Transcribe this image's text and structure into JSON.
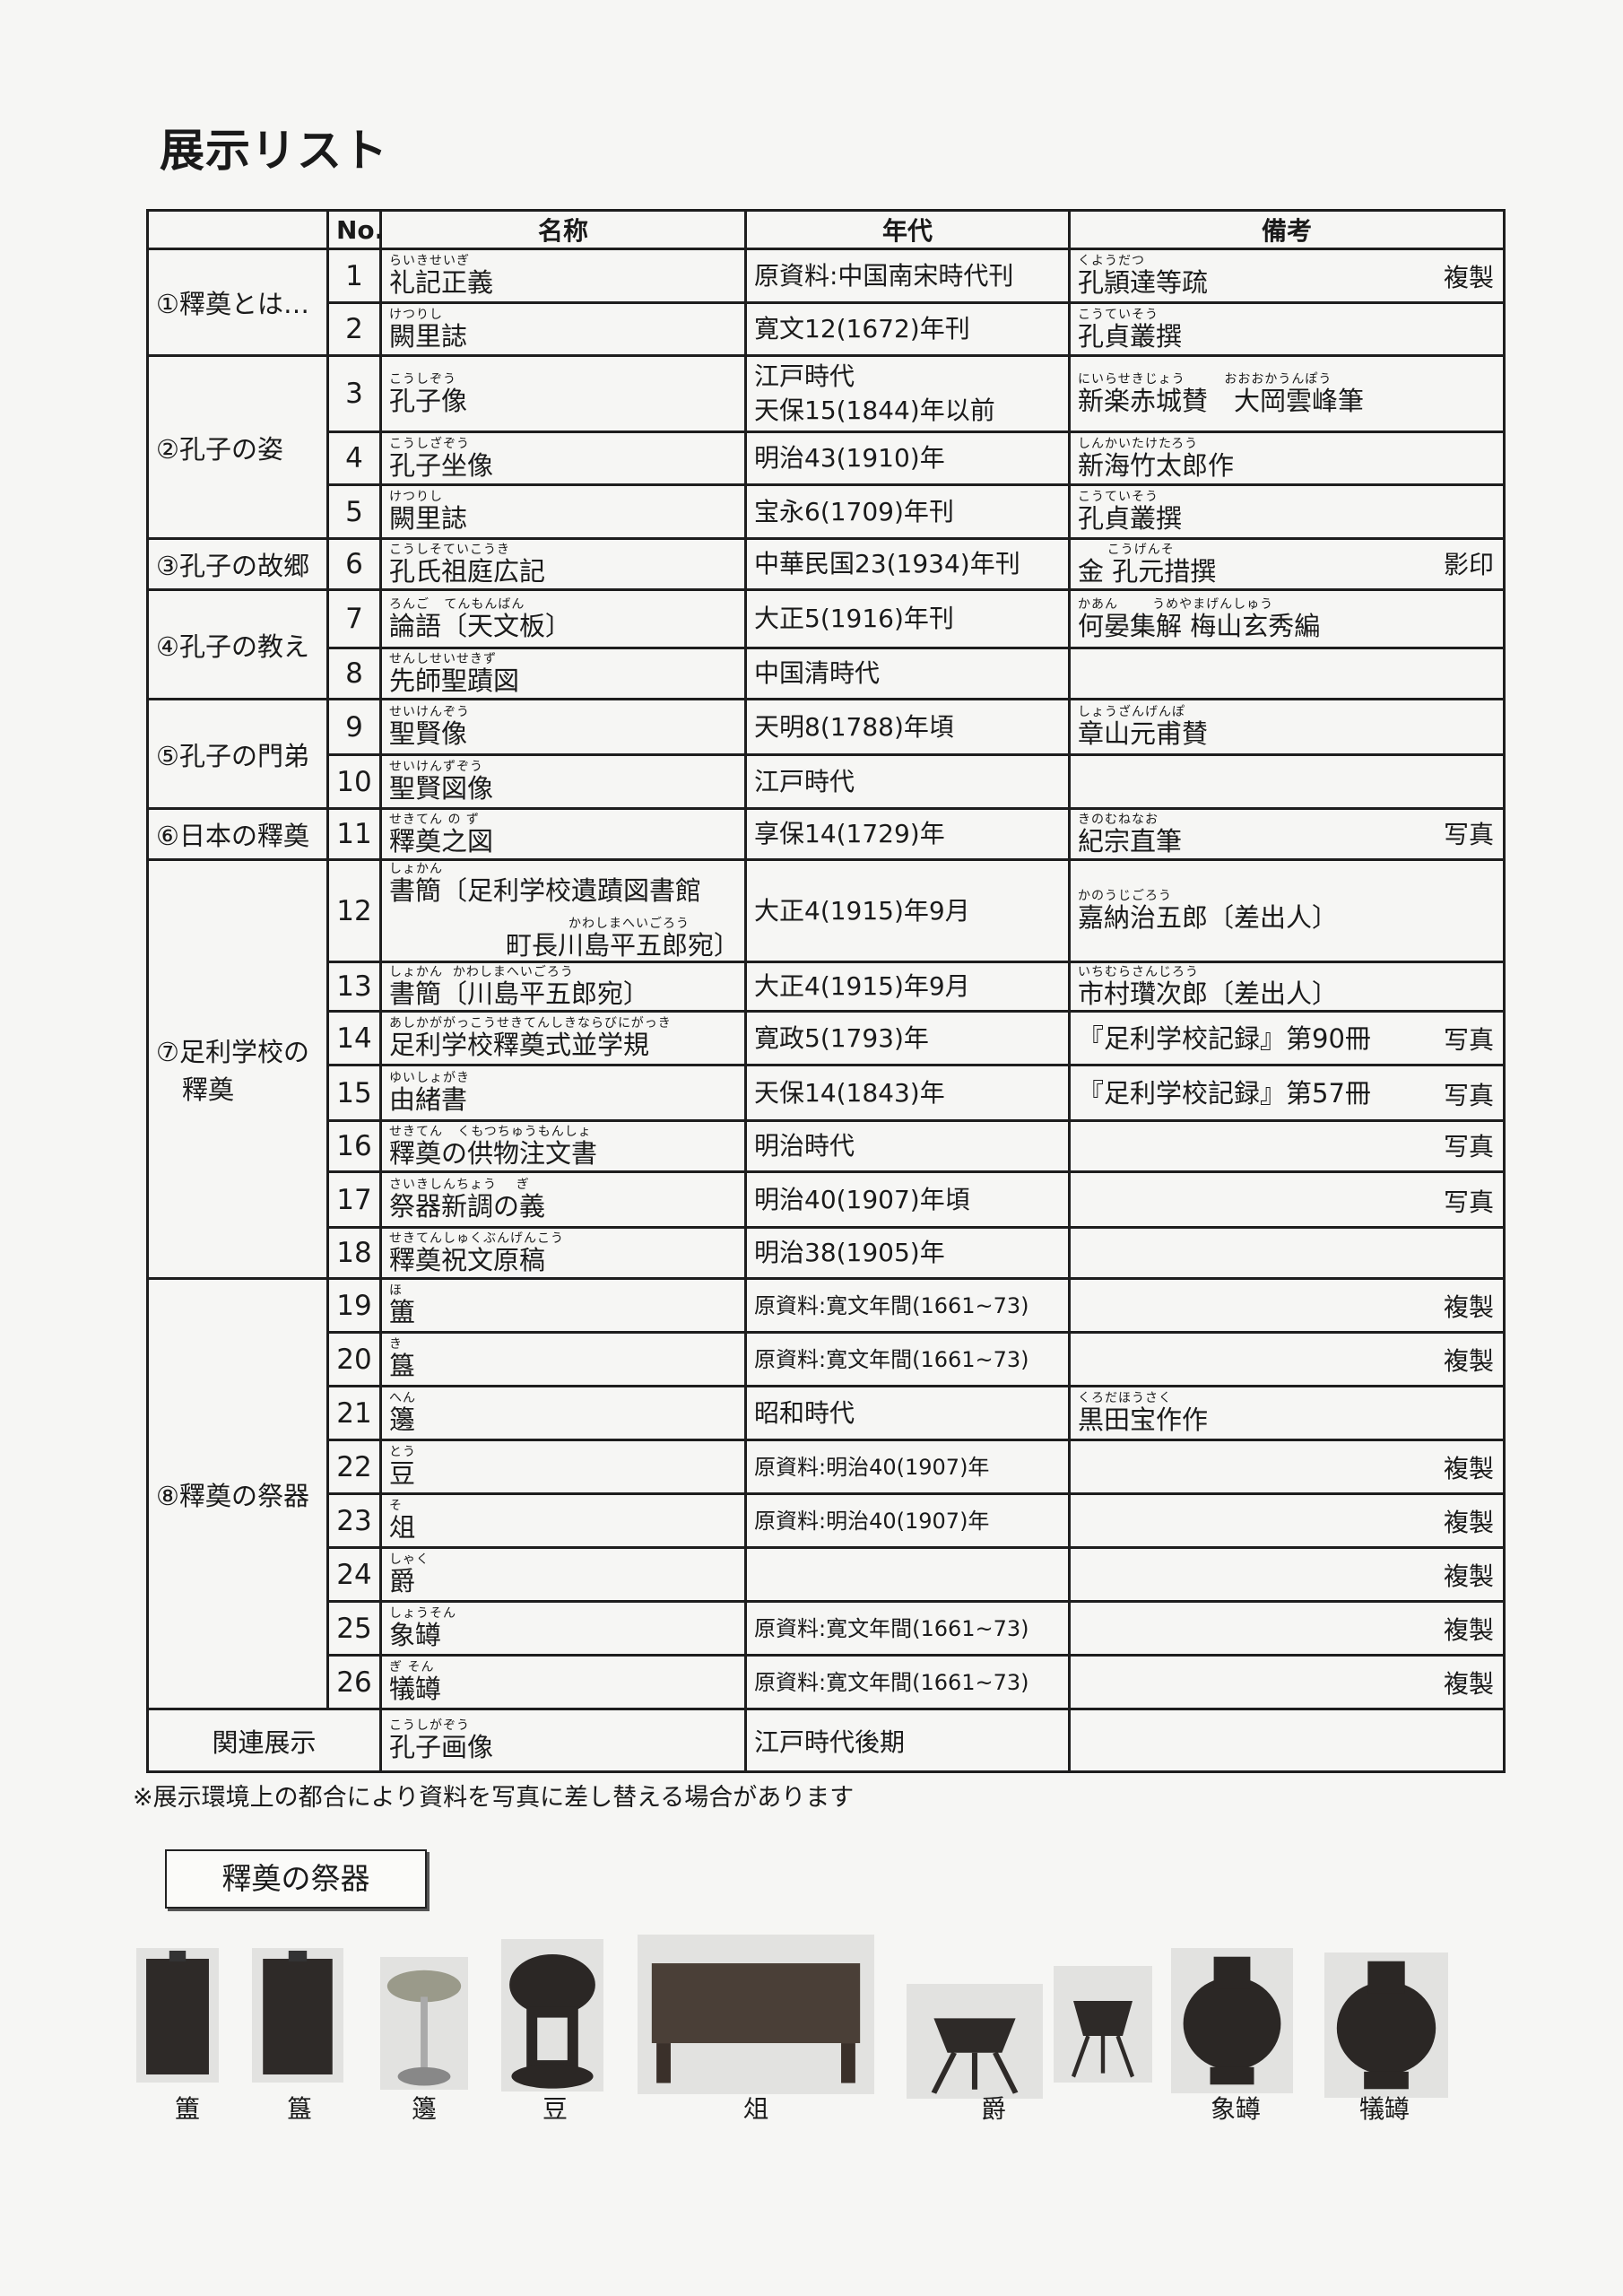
{
  "title": "展示リスト",
  "headers": {
    "section": "",
    "no": "No.",
    "name": "名称",
    "year": "年代",
    "notes": "備考"
  },
  "sections": [
    {
      "label": "①釋奠とは…",
      "items": [
        {
          "no": "1",
          "name_reading": "らいきせいぎ",
          "name": "礼記正義",
          "year": "原資料:中国南宋時代刊",
          "notes_reading": "くようだつ",
          "notes": "孔頴達等疏",
          "tag": "複製"
        },
        {
          "no": "2",
          "name_reading": "けつりし",
          "name": "闕里誌",
          "year": "寛文12(1672)年刊",
          "notes_reading": "こうていそう",
          "notes": "孔貞叢撰",
          "tag": ""
        }
      ]
    },
    {
      "label": "②孔子の姿",
      "items": [
        {
          "no": "3",
          "name_reading": "こうしぞう",
          "name": "孔子像",
          "year": "江戸時代\n天保15(1844)年以前",
          "notes_reading": "にいらせきじょう        おおおかうんぽう",
          "notes": "新楽赤城賛　大岡雲峰筆",
          "tag": ""
        },
        {
          "no": "4",
          "name_reading": "こうしざぞう",
          "name": "孔子坐像",
          "year": "明治43(1910)年",
          "notes_reading": "しんかいたけたろう",
          "notes": "新海竹太郎作",
          "tag": ""
        },
        {
          "no": "5",
          "name_reading": "けつりし",
          "name": "闕里誌",
          "year": "宝永6(1709)年刊",
          "notes_reading": "こうていそう",
          "notes": "孔貞叢撰",
          "tag": ""
        }
      ]
    },
    {
      "label": "③孔子の故郷",
      "items": [
        {
          "no": "6",
          "name_reading": "こうしそていこうき",
          "name": "孔氏祖庭広記",
          "year": "中華民国23(1934)年刊",
          "notes_reading": "      こうげんそ",
          "notes": "金 孔元措撰",
          "tag": "影印"
        }
      ]
    },
    {
      "label": "④孔子の教え",
      "items": [
        {
          "no": "7",
          "name_reading": "ろんご   てんもんばん",
          "name": "論語〔天文板〕",
          "year": "大正5(1916)年刊",
          "notes_reading": "かあん       うめやまげんしゅう",
          "notes": "何晏集解 梅山玄秀編",
          "tag": ""
        },
        {
          "no": "8",
          "name_reading": "せんしせいせきず",
          "name": "先師聖蹟図",
          "year": "中国清時代",
          "notes_reading": "",
          "notes": "",
          "tag": ""
        }
      ]
    },
    {
      "label": "⑤孔子の門弟",
      "items": [
        {
          "no": "9",
          "name_reading": "せいけんぞう",
          "name": "聖賢像",
          "year": "天明8(1788)年頃",
          "notes_reading": "しょうざんげんぽ",
          "notes": "章山元甫賛",
          "tag": ""
        },
        {
          "no": "10",
          "name_reading": "せいけんずぞう",
          "name": "聖賢図像",
          "year": "江戸時代",
          "notes_reading": "",
          "notes": "",
          "tag": ""
        }
      ]
    },
    {
      "label": "⑥日本の釋奠",
      "items": [
        {
          "no": "11",
          "name_reading": "せきてん の ず",
          "name": "釋奠之図",
          "year": "享保14(1729)年",
          "notes_reading": "きのむねなお",
          "notes": "紀宗直筆",
          "tag": "写真"
        }
      ]
    },
    {
      "label": "⑦足利学校の\n　釋奠",
      "items": [
        {
          "no": "12",
          "name_reading": "しょかん",
          "name": "書簡〔足利学校遺蹟図書館",
          "name_reading2": "かわしまへいごろう",
          "name2": "町長川島平五郎宛〕",
          "year": "大正4(1915)年9月",
          "notes_reading": "かのうじごろう",
          "notes": "嘉納治五郎〔差出人〕",
          "tag": ""
        },
        {
          "no": "13",
          "name_reading": "しょかん  かわしまへいごろう",
          "name": "書簡〔川島平五郎宛〕",
          "year": "大正4(1915)年9月",
          "notes_reading": "いちむらさんじろう",
          "notes": "市村瓚次郎〔差出人〕",
          "tag": ""
        },
        {
          "no": "14",
          "name_reading": "あしかががっこうせきてんしきならびにがっき",
          "name": "足利学校釋奠式並学規",
          "year": "寛政5(1793)年",
          "notes_reading": "",
          "notes": "『足利学校記録』第90冊",
          "tag": "写真"
        },
        {
          "no": "15",
          "name_reading": "ゆいしょがき",
          "name": "由緒書",
          "year": "天保14(1843)年",
          "notes_reading": "",
          "notes": "『足利学校記録』第57冊",
          "tag": "写真"
        },
        {
          "no": "16",
          "name_reading": "せきてん   くもつちゅうもんしょ",
          "name": "釋奠の供物注文書",
          "year": "明治時代",
          "notes_reading": "",
          "notes": "",
          "tag": "写真"
        },
        {
          "no": "17",
          "name_reading": "さいきしんちょう    ぎ",
          "name": "祭器新調の義",
          "year": "明治40(1907)年頃",
          "notes_reading": "",
          "notes": "",
          "tag": "写真"
        },
        {
          "no": "18",
          "name_reading": "せきてんしゅくぶんげんこう",
          "name": "釋奠祝文原稿",
          "year": "明治38(1905)年",
          "notes_reading": "",
          "notes": "",
          "tag": ""
        }
      ]
    },
    {
      "label": "⑧釋奠の祭器",
      "items": [
        {
          "no": "19",
          "name_reading": "ほ",
          "name": "簠",
          "year": "原資料:寛文年間(1661~73)",
          "notes_reading": "",
          "notes": "",
          "tag": "複製",
          "small": true
        },
        {
          "no": "20",
          "name_reading": "き",
          "name": "簋",
          "year": "原資料:寛文年間(1661~73)",
          "notes_reading": "",
          "notes": "",
          "tag": "複製",
          "small": true
        },
        {
          "no": "21",
          "name_reading": "へん",
          "name": "籩",
          "year": "昭和時代",
          "notes_reading": "くろだほうさく",
          "notes": "黒田宝作作",
          "tag": ""
        },
        {
          "no": "22",
          "name_reading": "とう",
          "name": "豆",
          "year": "原資料:明治40(1907)年",
          "notes_reading": "",
          "notes": "",
          "tag": "複製",
          "small": true
        },
        {
          "no": "23",
          "name_reading": "そ",
          "name": "俎",
          "year": "原資料:明治40(1907)年",
          "notes_reading": "",
          "notes": "",
          "tag": "複製",
          "small": true
        },
        {
          "no": "24",
          "name_reading": "しゃく",
          "name": "爵",
          "year": "",
          "notes_reading": "",
          "notes": "",
          "tag": "複製"
        },
        {
          "no": "25",
          "name_reading": "しょうそん",
          "name": "象罇",
          "year": "原資料:寛文年間(1661~73)",
          "notes_reading": "",
          "notes": "",
          "tag": "複製",
          "small": true
        },
        {
          "no": "26",
          "name_reading": "ぎ そん",
          "name": "犠罇",
          "year": "原資料:寛文年間(1661~73)",
          "notes_reading": "",
          "notes": "",
          "tag": "複製",
          "small": true
        }
      ]
    }
  ],
  "related": {
    "label": "関連展示",
    "name_reading": "こうしがぞう",
    "name": "孔子画像",
    "year": "江戸時代後期",
    "notes": ""
  },
  "footnote": "※展示環境上の都合により資料を写真に差し替える場合があります",
  "vessels": {
    "heading": "釋奠の祭器",
    "labels": [
      "簠",
      "簋",
      "籩",
      "豆",
      "俎",
      "爵",
      "象罇",
      "犠罇"
    ]
  }
}
